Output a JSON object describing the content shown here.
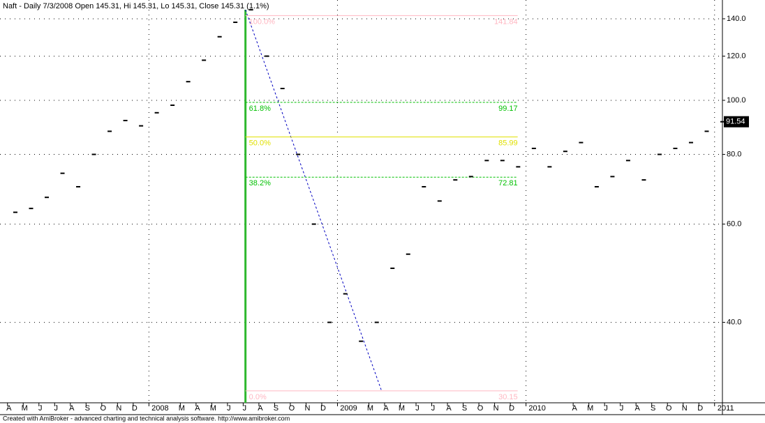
{
  "chart_data": {
    "type": "price",
    "title": "Naft - Daily 7/3/2008 Open 145.31, Hi 145.31, Lo 145.31, Close 145.31 (1.1%)",
    "footer": "Created with AmiBroker - advanced charting and technical analysis software. http://www.amibroker.com",
    "categories": [
      "A",
      "M",
      "J",
      "J",
      "A",
      "S",
      "O",
      "N",
      "D",
      "2008",
      null,
      "M",
      "A",
      "M",
      "J",
      "J",
      "A",
      "S",
      "O",
      "N",
      "D",
      "2009",
      null,
      "M",
      "A",
      "M",
      "J",
      "J",
      "A",
      "S",
      "O",
      "N",
      "D",
      "2010",
      null,
      null,
      "A",
      "M",
      "J",
      "J",
      "A",
      "S",
      "O",
      "N",
      "D",
      "2011"
    ],
    "values": [
      63,
      64,
      67,
      74,
      70,
      80,
      88,
      92,
      90,
      95,
      98,
      108,
      118,
      130,
      138,
      145.31,
      120,
      105,
      80,
      60,
      40,
      45,
      37,
      40,
      50,
      53,
      70,
      66,
      72,
      73,
      78,
      78,
      76,
      82,
      76,
      81,
      84,
      70,
      73,
      78,
      72,
      80,
      82,
      84,
      88,
      91.54
    ],
    "color": "#000000",
    "log_scale": true,
    "ylim": [
      28.7,
      147
    ],
    "yticks": [
      {
        "value": 40,
        "label": "40.0"
      },
      {
        "value": 60,
        "label": "60.0"
      },
      {
        "value": 80,
        "label": "80.0"
      },
      {
        "value": 100,
        "label": "100.0"
      },
      {
        "value": 120,
        "label": "120.0"
      },
      {
        "value": 140,
        "label": "140.0"
      }
    ],
    "grid": true,
    "fib_levels": [
      {
        "label": "100.0%",
        "value": 141.84,
        "color": "#ffb6c1"
      },
      {
        "label": "61.8%",
        "value": 99.17,
        "color": "#00c000"
      },
      {
        "label": "50.0%",
        "value": 85.99,
        "color": "#e0e000"
      },
      {
        "label": "38.2%",
        "value": 72.81,
        "color": "#00c000"
      },
      {
        "label": "0.0%",
        "value": 30.15,
        "color": "#ffb6c1"
      }
    ]
  }
}
